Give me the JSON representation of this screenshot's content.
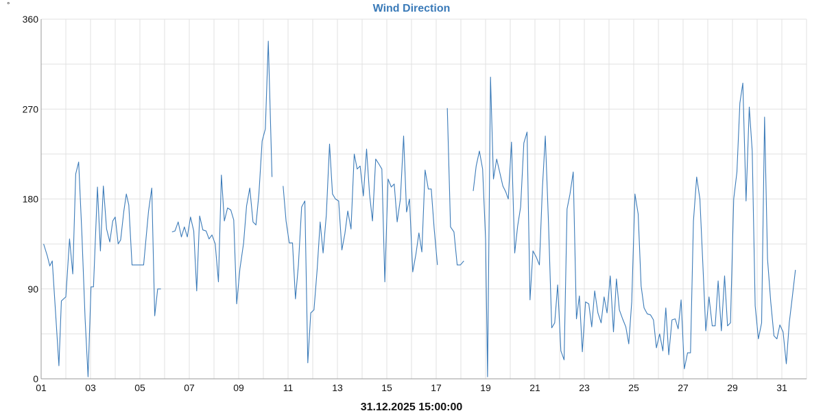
{
  "chart_data": {
    "type": "line",
    "title": "Wind Direction",
    "unit": "°",
    "xlabel": "31.12.2025 15:00:00",
    "ylabel": "",
    "ylim": [
      0,
      360
    ],
    "yticks": [
      "0",
      "90",
      "180",
      "270",
      "360"
    ],
    "xlim": [
      1,
      32.2
    ],
    "xticks": [
      "01",
      "03",
      "05",
      "07",
      "09",
      "11",
      "13",
      "15",
      "17",
      "19",
      "21",
      "23",
      "25",
      "27",
      "29",
      "31"
    ],
    "grid": true,
    "series": [
      {
        "color": "#3a7ab8",
        "points": [
          [
            1.1,
            135
          ],
          [
            1.25,
            123
          ],
          [
            1.35,
            113
          ],
          [
            1.45,
            118
          ],
          [
            1.6,
            60
          ],
          [
            1.72,
            13
          ],
          [
            1.82,
            78
          ],
          [
            2.0,
            82
          ],
          [
            2.15,
            140
          ],
          [
            2.28,
            105
          ],
          [
            2.4,
            205
          ],
          [
            2.52,
            217
          ],
          [
            2.65,
            145
          ],
          [
            2.78,
            60
          ],
          [
            2.9,
            2
          ],
          [
            3.02,
            92
          ],
          [
            3.12,
            92
          ],
          [
            3.28,
            192
          ],
          [
            3.4,
            128
          ],
          [
            3.52,
            193
          ],
          [
            3.65,
            150
          ],
          [
            3.78,
            137
          ],
          [
            3.9,
            158
          ],
          [
            4.0,
            162
          ],
          [
            4.12,
            135
          ],
          [
            4.22,
            139
          ],
          [
            4.35,
            168
          ],
          [
            4.45,
            185
          ],
          [
            4.55,
            174
          ],
          [
            4.68,
            114
          ],
          [
            4.82,
            114
          ],
          [
            4.98,
            114
          ],
          [
            5.15,
            114
          ],
          [
            5.35,
            168
          ],
          [
            5.48,
            191
          ],
          [
            5.6,
            63
          ],
          [
            5.72,
            90
          ],
          [
            5.85,
            90
          ],
          null,
          [
            6.3,
            147
          ],
          [
            6.42,
            148
          ],
          [
            6.55,
            157
          ],
          [
            6.68,
            142
          ],
          [
            6.8,
            152
          ],
          [
            6.92,
            142
          ],
          [
            7.05,
            162
          ],
          [
            7.18,
            148
          ],
          [
            7.3,
            88
          ],
          [
            7.42,
            163
          ],
          [
            7.55,
            149
          ],
          [
            7.68,
            148
          ],
          [
            7.8,
            140
          ],
          [
            7.92,
            144
          ],
          [
            8.05,
            135
          ],
          [
            8.18,
            97
          ],
          [
            8.3,
            204
          ],
          [
            8.42,
            158
          ],
          [
            8.55,
            171
          ],
          [
            8.68,
            169
          ],
          [
            8.8,
            159
          ],
          [
            8.92,
            75
          ],
          [
            9.05,
            110
          ],
          [
            9.2,
            136
          ],
          [
            9.32,
            173
          ],
          [
            9.45,
            191
          ],
          [
            9.58,
            157
          ],
          [
            9.7,
            154
          ],
          [
            9.82,
            185
          ],
          [
            9.95,
            238
          ],
          [
            10.08,
            250
          ],
          [
            10.2,
            338
          ],
          [
            10.35,
            202
          ],
          null,
          [
            10.8,
            193
          ],
          [
            10.92,
            158
          ],
          [
            11.05,
            136
          ],
          [
            11.18,
            136
          ],
          [
            11.3,
            80
          ],
          [
            11.42,
            114
          ],
          [
            11.55,
            172
          ],
          [
            11.68,
            178
          ],
          [
            11.8,
            16
          ],
          [
            11.92,
            66
          ],
          [
            12.05,
            69
          ],
          [
            12.18,
            110
          ],
          [
            12.3,
            157
          ],
          [
            12.42,
            126
          ],
          [
            12.55,
            164
          ],
          [
            12.68,
            235
          ],
          [
            12.8,
            185
          ],
          [
            12.92,
            180
          ],
          [
            13.05,
            178
          ],
          [
            13.18,
            129
          ],
          [
            13.3,
            145
          ],
          [
            13.42,
            168
          ],
          [
            13.55,
            150
          ],
          [
            13.68,
            225
          ],
          [
            13.8,
            210
          ],
          [
            13.92,
            213
          ],
          [
            14.05,
            183
          ],
          [
            14.18,
            230
          ],
          [
            14.3,
            185
          ],
          [
            14.42,
            158
          ],
          [
            14.55,
            220
          ],
          [
            14.68,
            215
          ],
          [
            14.8,
            210
          ],
          [
            14.92,
            97
          ],
          [
            15.05,
            200
          ],
          [
            15.18,
            192
          ],
          [
            15.3,
            195
          ],
          [
            15.42,
            157
          ],
          [
            15.55,
            180
          ],
          [
            15.68,
            243
          ],
          [
            15.8,
            167
          ],
          [
            15.92,
            180
          ],
          [
            16.05,
            107
          ],
          [
            16.18,
            125
          ],
          [
            16.3,
            146
          ],
          [
            16.42,
            127
          ],
          [
            16.55,
            209
          ],
          [
            16.68,
            190
          ],
          [
            16.8,
            190
          ],
          [
            16.92,
            150
          ],
          [
            17.05,
            114
          ],
          null,
          [
            17.45,
            271
          ],
          [
            17.58,
            152
          ],
          [
            17.72,
            147
          ],
          [
            17.85,
            114
          ],
          [
            17.98,
            114
          ],
          [
            18.12,
            118
          ],
          null,
          [
            18.5,
            188
          ],
          [
            18.62,
            213
          ],
          [
            18.75,
            228
          ],
          [
            18.88,
            210
          ],
          [
            19.0,
            140
          ],
          [
            19.08,
            2
          ],
          [
            19.2,
            302
          ],
          [
            19.32,
            200
          ],
          [
            19.45,
            220
          ],
          [
            19.58,
            206
          ],
          [
            19.7,
            193
          ],
          [
            19.82,
            187
          ],
          [
            19.92,
            180
          ],
          [
            20.05,
            237
          ],
          [
            20.18,
            126
          ],
          [
            20.3,
            153
          ],
          [
            20.42,
            172
          ],
          [
            20.55,
            236
          ],
          [
            20.68,
            247
          ],
          [
            20.8,
            79
          ],
          [
            20.92,
            128
          ],
          [
            21.05,
            122
          ],
          [
            21.18,
            114
          ],
          [
            21.3,
            190
          ],
          [
            21.42,
            243
          ],
          [
            21.55,
            155
          ],
          [
            21.68,
            51
          ],
          [
            21.8,
            56
          ],
          [
            21.92,
            94
          ],
          [
            22.05,
            28
          ],
          [
            22.18,
            19
          ],
          [
            22.3,
            170
          ],
          [
            22.42,
            185
          ],
          [
            22.55,
            207
          ],
          [
            22.68,
            60
          ],
          [
            22.8,
            83
          ],
          [
            22.92,
            27
          ],
          [
            23.05,
            77
          ],
          [
            23.18,
            75
          ],
          [
            23.3,
            52
          ],
          [
            23.42,
            88
          ],
          [
            23.55,
            66
          ],
          [
            23.68,
            56
          ],
          [
            23.8,
            82
          ],
          [
            23.92,
            66
          ],
          [
            24.05,
            103
          ],
          [
            24.18,
            47
          ],
          [
            24.3,
            100
          ],
          [
            24.42,
            69
          ],
          [
            24.55,
            60
          ],
          [
            24.68,
            52
          ],
          [
            24.8,
            35
          ],
          [
            24.92,
            77
          ],
          [
            25.05,
            185
          ],
          [
            25.18,
            165
          ],
          [
            25.3,
            93
          ],
          [
            25.42,
            71
          ],
          [
            25.55,
            65
          ],
          [
            25.68,
            64
          ],
          [
            25.8,
            59
          ],
          [
            25.92,
            31
          ],
          [
            26.05,
            45
          ],
          [
            26.18,
            28
          ],
          [
            26.3,
            71
          ],
          [
            26.42,
            24
          ],
          [
            26.55,
            59
          ],
          [
            26.68,
            60
          ],
          [
            26.8,
            50
          ],
          [
            26.92,
            79
          ],
          [
            27.05,
            10
          ],
          [
            27.18,
            26
          ],
          [
            27.3,
            26
          ],
          [
            27.42,
            158
          ],
          [
            27.55,
            202
          ],
          [
            27.68,
            180
          ],
          [
            27.8,
            115
          ],
          [
            27.92,
            48
          ],
          [
            28.05,
            82
          ],
          [
            28.18,
            53
          ],
          [
            28.3,
            53
          ],
          [
            28.42,
            98
          ],
          [
            28.55,
            48
          ],
          [
            28.68,
            103
          ],
          [
            28.8,
            53
          ],
          [
            28.92,
            56
          ],
          [
            29.05,
            180
          ],
          [
            29.18,
            207
          ],
          [
            29.3,
            276
          ],
          [
            29.42,
            296
          ],
          [
            29.55,
            178
          ],
          [
            29.68,
            272
          ],
          [
            29.8,
            228
          ],
          [
            29.92,
            73
          ],
          [
            30.05,
            40
          ],
          [
            30.18,
            56
          ],
          [
            30.3,
            262
          ],
          [
            30.42,
            120
          ],
          [
            30.55,
            77
          ],
          [
            30.68,
            43
          ],
          [
            30.8,
            40
          ],
          [
            30.92,
            54
          ],
          [
            31.05,
            47
          ],
          [
            31.18,
            15
          ],
          [
            31.3,
            56
          ],
          [
            31.42,
            81
          ],
          [
            31.55,
            109
          ]
        ]
      }
    ]
  }
}
